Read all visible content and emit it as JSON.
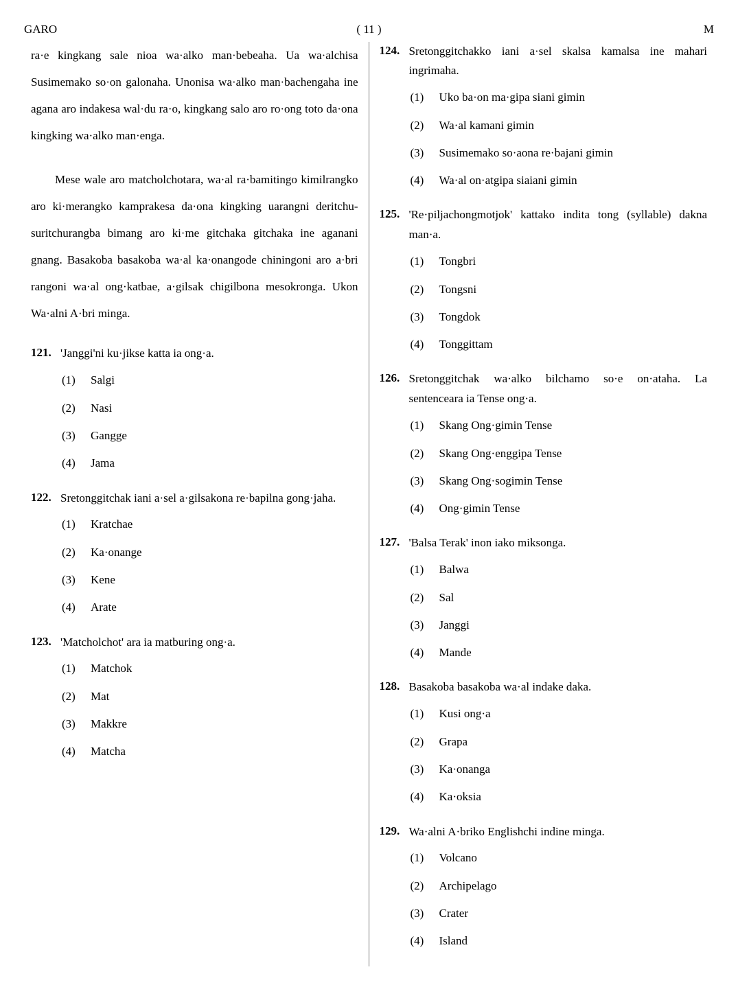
{
  "header": {
    "left": "GARO",
    "center": "( 11 )",
    "right": "M"
  },
  "leftColumn": {
    "passage1": "ra·e kingkang sale nioa wa·alko man·bebeaha. Ua wa·alchisa Susimemako so·on galonaha. Unonisa wa·alko man·bachengaha ine agana aro indakesa wal·du ra·o, kingkang salo aro ro·ong toto da·ona kingking wa·alko man·enga.",
    "passage2": "Mese wale aro matcholchotara, wa·al ra·bamitingo kimilrangko aro ki·merangko kamprakesa da·ona kingking uarangni deritchu-suritchurangba bimang aro ki·me gitchaka gitchaka ine aganani gnang. Basakoba basakoba wa·al ka·onangode chiningoni aro a·bri rangoni wa·al ong·katbae, a·gilsak chigilbona mesokronga. Ukon Wa·alni A·bri minga.",
    "questions": [
      {
        "num": "121.",
        "text": "'Janggi'ni ku·jikse katta ia ong·a.",
        "options": [
          "Salgi",
          "Nasi",
          "Gangge",
          "Jama"
        ]
      },
      {
        "num": "122.",
        "text": "Sretonggitchak iani a·sel a·gilsakona re·bapilna gong·jaha.",
        "options": [
          "Kratchae",
          "Ka·onange",
          "Kene",
          "Arate"
        ]
      },
      {
        "num": "123.",
        "text": "'Matcholchot' ara ia matburing ong·a.",
        "options": [
          "Matchok",
          "Mat",
          "Makkre",
          "Matcha"
        ]
      }
    ]
  },
  "rightColumn": {
    "questions": [
      {
        "num": "124.",
        "text": "Sretonggitchakko iani a·sel skalsa kamalsa ine mahari ingrimaha.",
        "options": [
          "Uko ba·on ma·gipa siani gimin",
          "Wa·al kamani gimin",
          "Susimemako so·aona re·bajani gimin",
          "Wa·al on·atgipa siaiani gimin"
        ]
      },
      {
        "num": "125.",
        "text": "'Re·piljachongmotjok' kattako indita tong (syllable) dakna man·a.",
        "options": [
          "Tongbri",
          "Tongsni",
          "Tongdok",
          "Tonggittam"
        ]
      },
      {
        "num": "126.",
        "text": "Sretonggitchak wa·alko bilchamo so·e on·ataha. La sentenceara ia Tense ong·a.",
        "options": [
          "Skang Ong·gimin Tense",
          "Skang Ong·enggipa Tense",
          "Skang Ong·sogimin Tense",
          "Ong·gimin Tense"
        ]
      },
      {
        "num": "127.",
        "text": "'Balsa Terak' inon iako miksonga.",
        "options": [
          "Balwa",
          "Sal",
          "Janggi",
          "Mande"
        ]
      },
      {
        "num": "128.",
        "text": "Basakoba basakoba wa·al indake daka.",
        "options": [
          "Kusi ong·a",
          "Grapa",
          "Ka·onanga",
          "Ka·oksia"
        ]
      },
      {
        "num": "129.",
        "text": "Wa·alni A·briko Englishchi indine minga.",
        "options": [
          "Volcano",
          "Archipelago",
          "Crater",
          "Island"
        ]
      }
    ]
  },
  "optionLabels": [
    "(1)",
    "(2)",
    "(3)",
    "(4)"
  ]
}
